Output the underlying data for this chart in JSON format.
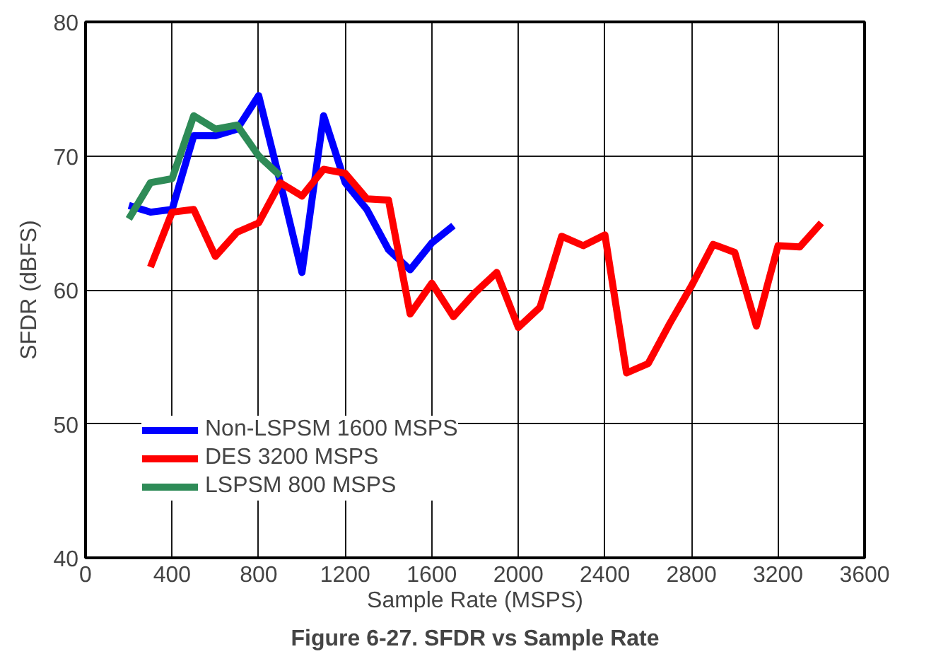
{
  "chart_data": {
    "type": "line",
    "title": "Figure 6-27. SFDR vs Sample Rate",
    "xlabel": "Sample Rate (MSPS)",
    "ylabel": "SFDR (dBFS)",
    "xlim": [
      0,
      3600
    ],
    "xticks": [
      0,
      400,
      800,
      1200,
      1600,
      2000,
      2400,
      2800,
      3200,
      3600
    ],
    "ylim": [
      40,
      80
    ],
    "yticks": [
      40,
      50,
      60,
      70,
      80
    ],
    "grid": true,
    "legend": "bottom left",
    "series": [
      {
        "name": "Non-LSPSM 1600 MSPS",
        "color": "#0000ff",
        "x": [
          200,
          300,
          400,
          500,
          600,
          700,
          800,
          900,
          1000,
          1100,
          1200,
          1300,
          1400,
          1500,
          1600,
          1700
        ],
        "values": [
          66.3,
          65.8,
          66,
          71.5,
          71.5,
          72,
          74.5,
          68,
          61.3,
          73,
          68,
          66,
          63,
          61.5,
          63.5,
          64.8
        ]
      },
      {
        "name": "DES 3200 MSPS",
        "color": "#ff0000",
        "x": [
          300,
          400,
          500,
          600,
          700,
          800,
          900,
          1000,
          1100,
          1200,
          1300,
          1400,
          1500,
          1600,
          1700,
          1800,
          1900,
          2000,
          2100,
          2200,
          2300,
          2400,
          2500,
          2600,
          2700,
          2800,
          2900,
          3000,
          3100,
          3200,
          3300,
          3400
        ],
        "values": [
          61.7,
          65.8,
          66,
          62.5,
          64.3,
          65,
          68,
          67,
          69,
          68.7,
          66.8,
          66.7,
          58.2,
          60.5,
          58,
          59.8,
          61.3,
          57.2,
          58.7,
          64,
          63.3,
          64.1,
          53.8,
          54.5,
          57.5,
          60.3,
          63.4,
          62.8,
          57.3,
          63.3,
          63.2,
          65
        ]
      },
      {
        "name": "LSPSM 800 MSPS",
        "color": "#2e8b57",
        "x": [
          200,
          300,
          400,
          500,
          600,
          700,
          800,
          900
        ],
        "values": [
          65.3,
          68,
          68.3,
          73,
          72,
          72.3,
          70,
          68.5
        ]
      }
    ]
  }
}
